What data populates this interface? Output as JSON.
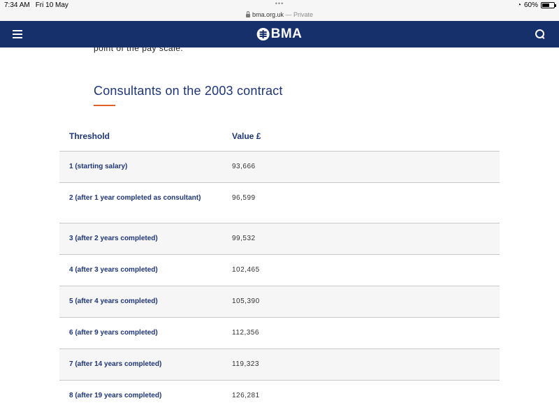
{
  "status_bar": {
    "time": "7:34 AM",
    "date": "Fri 10 May",
    "battery": "60%",
    "battery_level": 0.6
  },
  "address_bar": {
    "domain": "bma.org.uk",
    "separator": "—",
    "mode": "Private"
  },
  "navbar": {
    "logo_text": "BMA",
    "background": "#15306b"
  },
  "content": {
    "previous_text": "point of the pay scale.",
    "section_title": "Consultants on the 2003 contract",
    "accent_color": "#e2622b"
  },
  "table": {
    "headers": [
      "Threshold",
      "Value £"
    ],
    "rows": [
      {
        "threshold": "1 (starting salary)",
        "value": "93,666"
      },
      {
        "threshold": "2 (after 1 year completed as consultant)",
        "value": "96,599"
      },
      {
        "threshold": "3 (after 2 years completed)",
        "value": "99,532"
      },
      {
        "threshold": "4 (after 3 years completed)",
        "value": "102,465"
      },
      {
        "threshold": "5 (after 4 years completed)",
        "value": "105,390"
      },
      {
        "threshold": "6 (after 9 years completed)",
        "value": "112,356"
      },
      {
        "threshold": "7 (after 14 years completed)",
        "value": "119,323"
      },
      {
        "threshold": "8 (after 19 years completed)",
        "value": "126,281"
      }
    ]
  }
}
